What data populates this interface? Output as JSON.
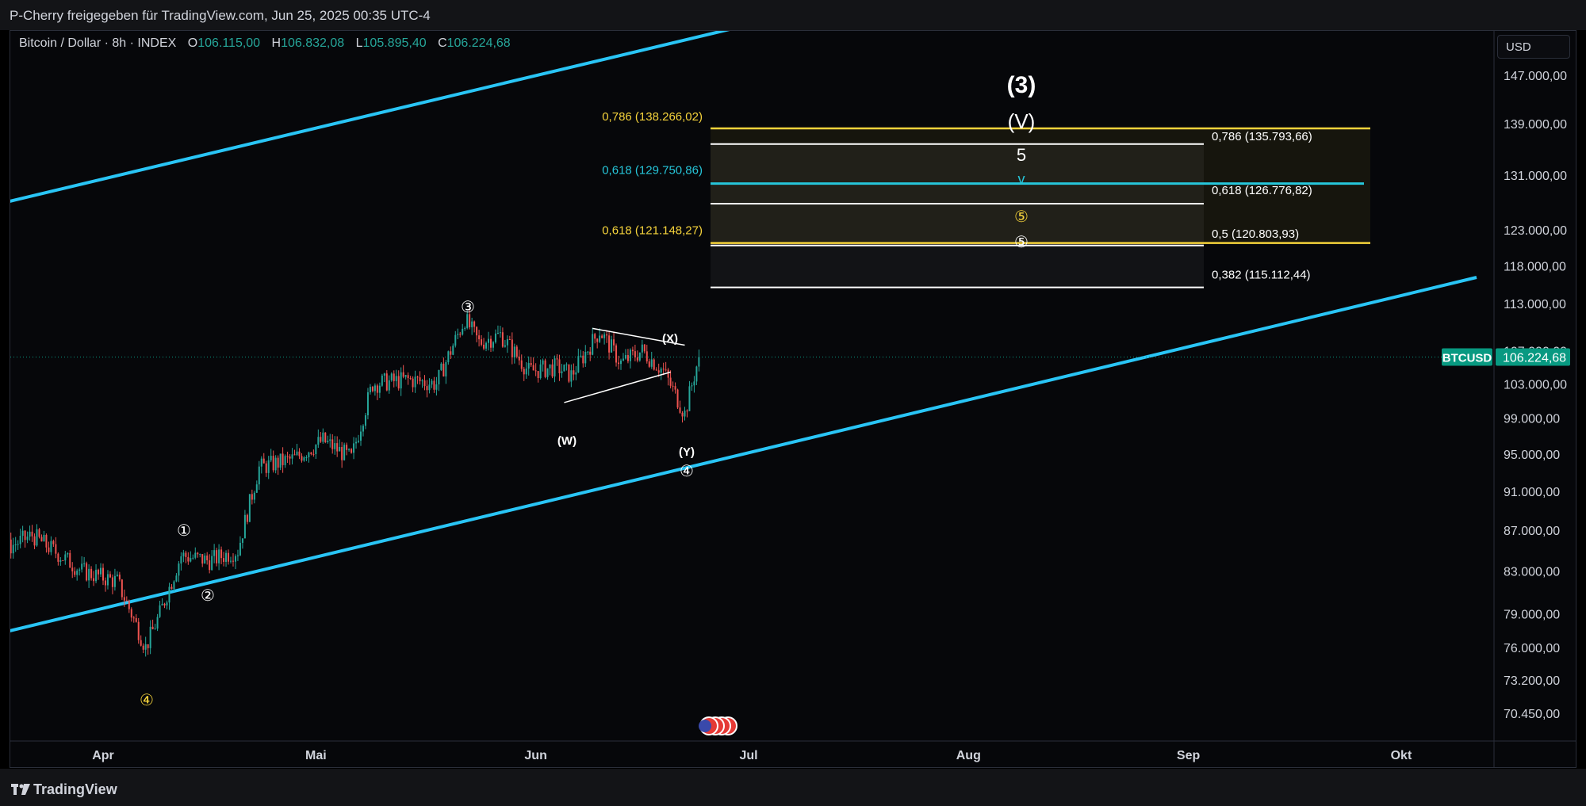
{
  "header": {
    "text": "P-Cherry freigegeben für TradingView.com, Jun 25, 2025 00:35 UTC-4"
  },
  "legend": {
    "symbol": "Bitcoin / Dollar · 8h · INDEX",
    "open_label": "O",
    "open": "106.115,00",
    "high_label": "H",
    "high": "106.832,08",
    "low_label": "L",
    "low": "105.895,40",
    "close_label": "C",
    "close": "106.224,68"
  },
  "currency": "USD",
  "footer": {
    "brand": "TradingView"
  },
  "colors": {
    "up": "#26a69a",
    "down": "#ef5350",
    "channel": "#29c5f6",
    "fib_yellow": "#f5d33b",
    "fib_cyan": "#26c6da",
    "price_badge": "#089981"
  },
  "chart_data": {
    "type": "candlestick",
    "x_axis": {
      "ticks": [
        "Apr",
        "Mai",
        "Jun",
        "Jul",
        "Aug",
        "Sep",
        "Okt"
      ]
    },
    "y_axis": {
      "scale": "log",
      "ticks": [
        "147.000,00",
        "139.000,00",
        "131.000,00",
        "123.000,00",
        "118.000,00",
        "113.000,00",
        "107.000,00",
        "103.000,00",
        "99.000,00",
        "95.000,00",
        "91.000,00",
        "87.000,00",
        "83.000,00",
        "79.000,00",
        "76.000,00",
        "73.200,00",
        "70.450,00"
      ],
      "tick_values": [
        147000,
        139000,
        131000,
        123000,
        118000,
        113000,
        107000,
        103000,
        99000,
        95000,
        91000,
        87000,
        83000,
        79000,
        76000,
        73200,
        70450
      ],
      "range": [
        69000,
        160000
      ]
    },
    "price_series_approx": [
      {
        "date": "2025-03-01",
        "close": 86000
      },
      {
        "date": "2025-03-08",
        "close": 85500
      },
      {
        "date": "2025-03-15",
        "close": 84000
      },
      {
        "date": "2025-03-22",
        "close": 86500
      },
      {
        "date": "2025-03-29",
        "close": 83000
      },
      {
        "date": "2025-04-03",
        "close": 82000
      },
      {
        "date": "2025-04-07",
        "close": 76000
      },
      {
        "date": "2025-04-09",
        "close": 79000
      },
      {
        "date": "2025-04-12",
        "close": 84500
      },
      {
        "date": "2025-04-16",
        "close": 84000
      },
      {
        "date": "2025-04-20",
        "close": 85000
      },
      {
        "date": "2025-04-23",
        "close": 93500
      },
      {
        "date": "2025-04-28",
        "close": 94500
      },
      {
        "date": "2025-05-02",
        "close": 96500
      },
      {
        "date": "2025-05-06",
        "close": 94500
      },
      {
        "date": "2025-05-09",
        "close": 103000
      },
      {
        "date": "2025-05-14",
        "close": 103500
      },
      {
        "date": "2025-05-18",
        "close": 103000
      },
      {
        "date": "2025-05-22",
        "close": 111000
      },
      {
        "date": "2025-05-24",
        "close": 108000
      },
      {
        "date": "2025-05-27",
        "close": 109000
      },
      {
        "date": "2025-05-31",
        "close": 104500
      },
      {
        "date": "2025-06-04",
        "close": 105000
      },
      {
        "date": "2025-06-06",
        "close": 104000
      },
      {
        "date": "2025-06-10",
        "close": 109500
      },
      {
        "date": "2025-06-13",
        "close": 105500
      },
      {
        "date": "2025-06-16",
        "close": 107000
      },
      {
        "date": "2025-06-19",
        "close": 104500
      },
      {
        "date": "2025-06-22",
        "close": 99500
      },
      {
        "date": "2025-06-24",
        "close": 106224.68
      }
    ],
    "channel_lines": [
      {
        "name": "upper",
        "from": {
          "date": "2025-03-01",
          "price": "upper"
        }
      },
      {
        "name": "lower",
        "from": {
          "date": "2025-03-01",
          "price": 81000
        }
      }
    ],
    "fib_levels": [
      {
        "label": "0,786 (138.266,02)",
        "value": 138266.02,
        "color": "yellow"
      },
      {
        "label": "0,618 (129.750,86)",
        "value": 129750.86,
        "color": "cyan"
      },
      {
        "label": "0,618 (121.148,27)",
        "value": 121148.27,
        "color": "yellow"
      },
      {
        "label": "0,786 (135.793,66)",
        "value": 135793.66,
        "color": "white"
      },
      {
        "label": "0,618 (126.776,82)",
        "value": 126776.82,
        "color": "white"
      },
      {
        "label": "0,5 (120.803,93)",
        "value": 120803.93,
        "color": "white"
      },
      {
        "label": "0,382 (115.112,44)",
        "value": 115112.44,
        "color": "white"
      }
    ],
    "wave_labels": [
      {
        "text": "(3)"
      },
      {
        "text": "(V)"
      },
      {
        "text": "5"
      },
      {
        "text": "v"
      },
      {
        "text": "⑤"
      },
      {
        "text": "⑤"
      },
      {
        "text": "③"
      },
      {
        "text": "①"
      },
      {
        "text": "②"
      },
      {
        "text": "④"
      },
      {
        "text": "④"
      },
      {
        "text": "(W)"
      },
      {
        "text": "(X)"
      },
      {
        "text": "(Y)"
      }
    ],
    "current_price": {
      "symbol": "BTCUSD",
      "value": "106.224,68",
      "number": 106224.68
    }
  }
}
